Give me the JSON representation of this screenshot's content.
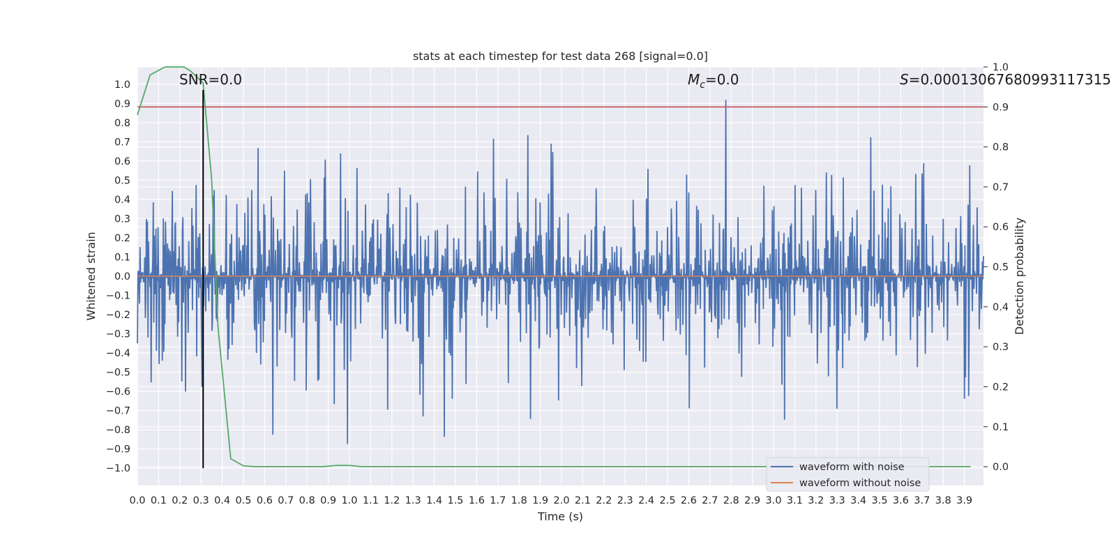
{
  "chart_data": {
    "type": "line",
    "title": "stats at each timestep for test data 268 [signal=0.0]",
    "xlabel": "Time (s)",
    "ylabel": "Whitened strain",
    "y2label": "Detection probability",
    "xlim": [
      0.0,
      3.99
    ],
    "ylim": [
      -1.09,
      1.09
    ],
    "y2lim": [
      -0.047,
      1.0
    ],
    "grid": true,
    "x_ticks": [
      "0.0",
      "0.1",
      "0.2",
      "0.3",
      "0.4",
      "0.5",
      "0.6",
      "0.7",
      "0.8",
      "0.9",
      "1.0",
      "1.1",
      "1.2",
      "1.3",
      "1.4",
      "1.5",
      "1.6",
      "1.7",
      "1.8",
      "1.9",
      "2.0",
      "2.1",
      "2.2",
      "2.3",
      "2.4",
      "2.5",
      "2.6",
      "2.7",
      "2.8",
      "2.9",
      "3.0",
      "3.1",
      "3.2",
      "3.3",
      "3.4",
      "3.5",
      "3.6",
      "3.7",
      "3.8",
      "3.9"
    ],
    "y_ticks": [
      "1.0",
      "0.9",
      "0.8",
      "0.7",
      "0.6",
      "0.5",
      "0.4",
      "0.3",
      "0.2",
      "0.1",
      "0.0",
      "-0.1",
      "-0.2",
      "-0.3",
      "-0.4",
      "-0.5",
      "-0.6",
      "-0.7",
      "-0.8",
      "-0.9",
      "-1.0"
    ],
    "y2_ticks": [
      "1.0",
      "0.9",
      "0.8",
      "0.7",
      "0.6",
      "0.5",
      "0.4",
      "0.3",
      "0.2",
      "0.1",
      "0.0"
    ],
    "annotations": {
      "snr": "SNR=0.0",
      "mc": "=0.0",
      "mc_symbol": "M",
      "mc_sub": "c",
      "s": "=0.00013067680993117315",
      "s_symbol": "S"
    },
    "legend": {
      "placement": "lower-right",
      "entries": [
        "waveform with noise",
        "waveform without noise"
      ]
    },
    "colors": {
      "noise": "#4c72b0",
      "clean": "#dd8452",
      "probability": "#55a868",
      "threshold": "#c44e52",
      "marker": "#000000",
      "background": "#eaeaf2",
      "grid": "#ffffff"
    },
    "series": [
      {
        "name": "waveform with noise",
        "axis": "left",
        "envelope": "dense noise, amplitude approx 0.3-0.95 across 0.0-3.99 s"
      },
      {
        "name": "waveform without noise",
        "axis": "left",
        "x": [
          0.0,
          3.99
        ],
        "y": [
          0.0,
          0.0
        ]
      },
      {
        "axis": "right",
        "x": [
          0.0,
          0.06,
          0.13,
          0.22,
          0.25,
          0.31,
          0.35,
          0.38,
          0.44,
          0.5,
          0.56,
          0.87,
          0.94,
          1.0,
          1.06,
          3.93
        ],
        "y": [
          0.88,
          0.98,
          1.0,
          1.0,
          0.99,
          0.96,
          0.72,
          0.35,
          0.02,
          0.002,
          0.0,
          0.0,
          0.003,
          0.003,
          0.0,
          0.0
        ]
      },
      {
        "axis": "right",
        "type": "hline",
        "y": 0.9
      },
      {
        "axis": "left",
        "type": "vline",
        "x": 0.31,
        "y_range": [
          -1.0,
          0.97
        ]
      }
    ]
  }
}
